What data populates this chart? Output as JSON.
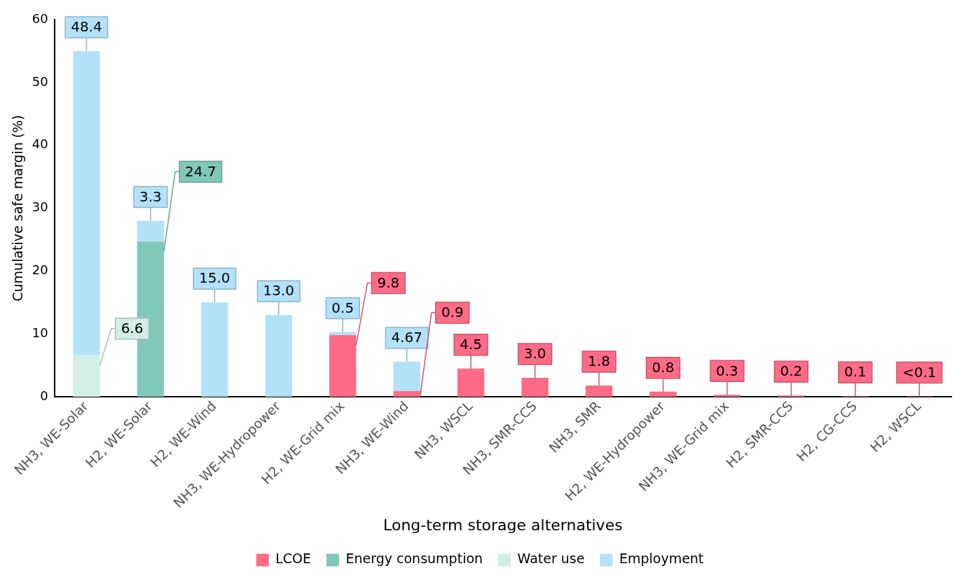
{
  "chart_data": {
    "type": "bar",
    "stacked": true,
    "xlabel": "Long-term storage alternatives",
    "ylabel": "Cumulative safe margin (%)",
    "categories": [
      "NH3, WE-Solar",
      "H2, WE-Solar",
      "H2, WE-Wind",
      "NH3, WE-Hydropower",
      "H2, WE-Grid mix",
      "NH3, WE-Wind",
      "NH3, WSCL",
      "NH3, SMR-CCS",
      "NH3, SMR",
      "H2, WE-Hydropower",
      "NH3, WE-Grid mix",
      "H2, SMR-CCS",
      "H2, CG-CCS",
      "H2, WSCL"
    ],
    "series": [
      {
        "name": "LCOE",
        "color": "#ff6b86",
        "values": [
          null,
          null,
          null,
          null,
          9.8,
          0.9,
          4.5,
          3.0,
          1.8,
          0.8,
          0.3,
          0.2,
          0.1,
          0.05
        ],
        "value_labels": [
          null,
          null,
          null,
          null,
          "9.8",
          "0.9",
          "4.5",
          "3.0",
          "1.8",
          "0.8",
          "0.3",
          "0.2",
          "0.1",
          "<0.1"
        ]
      },
      {
        "name": "Energy consumption",
        "color": "#80c9b8",
        "values": [
          null,
          24.7,
          null,
          null,
          null,
          null,
          null,
          null,
          null,
          null,
          null,
          null,
          null,
          null
        ],
        "value_labels": [
          null,
          "24.7",
          null,
          null,
          null,
          null,
          null,
          null,
          null,
          null,
          null,
          null,
          null,
          null
        ]
      },
      {
        "name": "Water use",
        "color": "#d3eee7",
        "values": [
          6.6,
          null,
          null,
          null,
          null,
          null,
          null,
          null,
          null,
          null,
          null,
          null,
          null,
          null
        ],
        "value_labels": [
          "6.6",
          null,
          null,
          null,
          null,
          null,
          null,
          null,
          null,
          null,
          null,
          null,
          null,
          null
        ]
      },
      {
        "name": "Employment",
        "color": "#b3e1f9",
        "values": [
          48.4,
          3.3,
          15.0,
          13.0,
          0.5,
          4.67,
          null,
          null,
          null,
          null,
          null,
          null,
          null,
          null
        ],
        "value_labels": [
          "48.4",
          "3.3",
          "15.0",
          "13.0",
          "0.5",
          "4.67",
          null,
          null,
          null,
          null,
          null,
          null,
          null,
          null
        ]
      }
    ],
    "ylim": [
      0,
      60
    ],
    "yticks": [
      0,
      10,
      20,
      30,
      40,
      50,
      60
    ],
    "grid": false,
    "legend": "bottom"
  }
}
